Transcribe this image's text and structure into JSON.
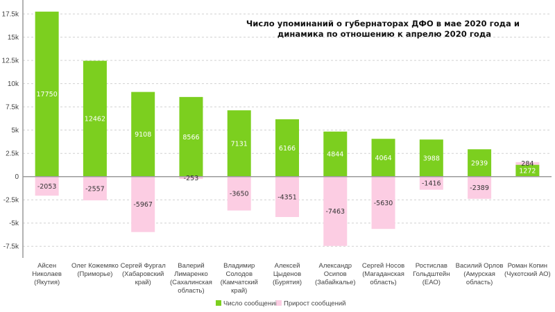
{
  "chart_data": {
    "type": "bar",
    "stacked": true,
    "title": [
      "Число упоминаний о губернаторах ДФО в мае 2020 года и",
      "динамика по отношению к апрелю 2020 года"
    ],
    "xlabel": "",
    "ylabel": "",
    "ylim": [
      -8750,
      19000
    ],
    "grid": true,
    "legend": "bottom",
    "y_ticks": [
      {
        "value": 17500,
        "label": "17.5k"
      },
      {
        "value": 15000,
        "label": "15k"
      },
      {
        "value": 12500,
        "label": "12.5k"
      },
      {
        "value": 10000,
        "label": "10k"
      },
      {
        "value": 7500,
        "label": "7.5k"
      },
      {
        "value": 5000,
        "label": "5k"
      },
      {
        "value": 2500,
        "label": "2.5k"
      },
      {
        "value": 0,
        "label": "0"
      },
      {
        "value": -2500,
        "label": "-2.5k"
      },
      {
        "value": -5000,
        "label": "-5k"
      },
      {
        "value": -7500,
        "label": "-7.5k"
      }
    ],
    "categories": [
      [
        "Айсен",
        "Николаев",
        "(Якутия)"
      ],
      [
        "Олег Кожемяко",
        "(Приморье)"
      ],
      [
        "Сергей Фургал",
        "(Хабаровский",
        "край)"
      ],
      [
        "Валерий",
        "Лимаренко",
        "(Сахалинская",
        "область)"
      ],
      [
        "Владимир",
        "Солодов",
        "(Камчатский",
        "край)"
      ],
      [
        "Алексей",
        "Цыденов",
        "(Бурятия)"
      ],
      [
        "Александр",
        "Осипов",
        "(Забайкалье)"
      ],
      [
        "Сергей Носов",
        "(Магаданская",
        "область)"
      ],
      [
        "Ростислав",
        "Гольдштейн",
        "(ЕАО)"
      ],
      [
        "Василий Орлов",
        "(Амурская",
        "область)"
      ],
      [
        "Роман Копин",
        "(Чукотский АО)"
      ]
    ],
    "series": [
      {
        "name": "Число сообщений",
        "color": "#7ccf1f",
        "label_color": "#ffffff",
        "values": [
          17750,
          12462,
          9108,
          8566,
          7131,
          6166,
          4844,
          4064,
          3988,
          2939,
          1272
        ]
      },
      {
        "name": "Прирост сообщений",
        "color": "#fccde3",
        "label_color": "#333333",
        "values": [
          -2053,
          -2557,
          -5967,
          -253,
          -3650,
          -4351,
          -7463,
          -5630,
          -1416,
          -2389,
          284
        ]
      }
    ]
  }
}
